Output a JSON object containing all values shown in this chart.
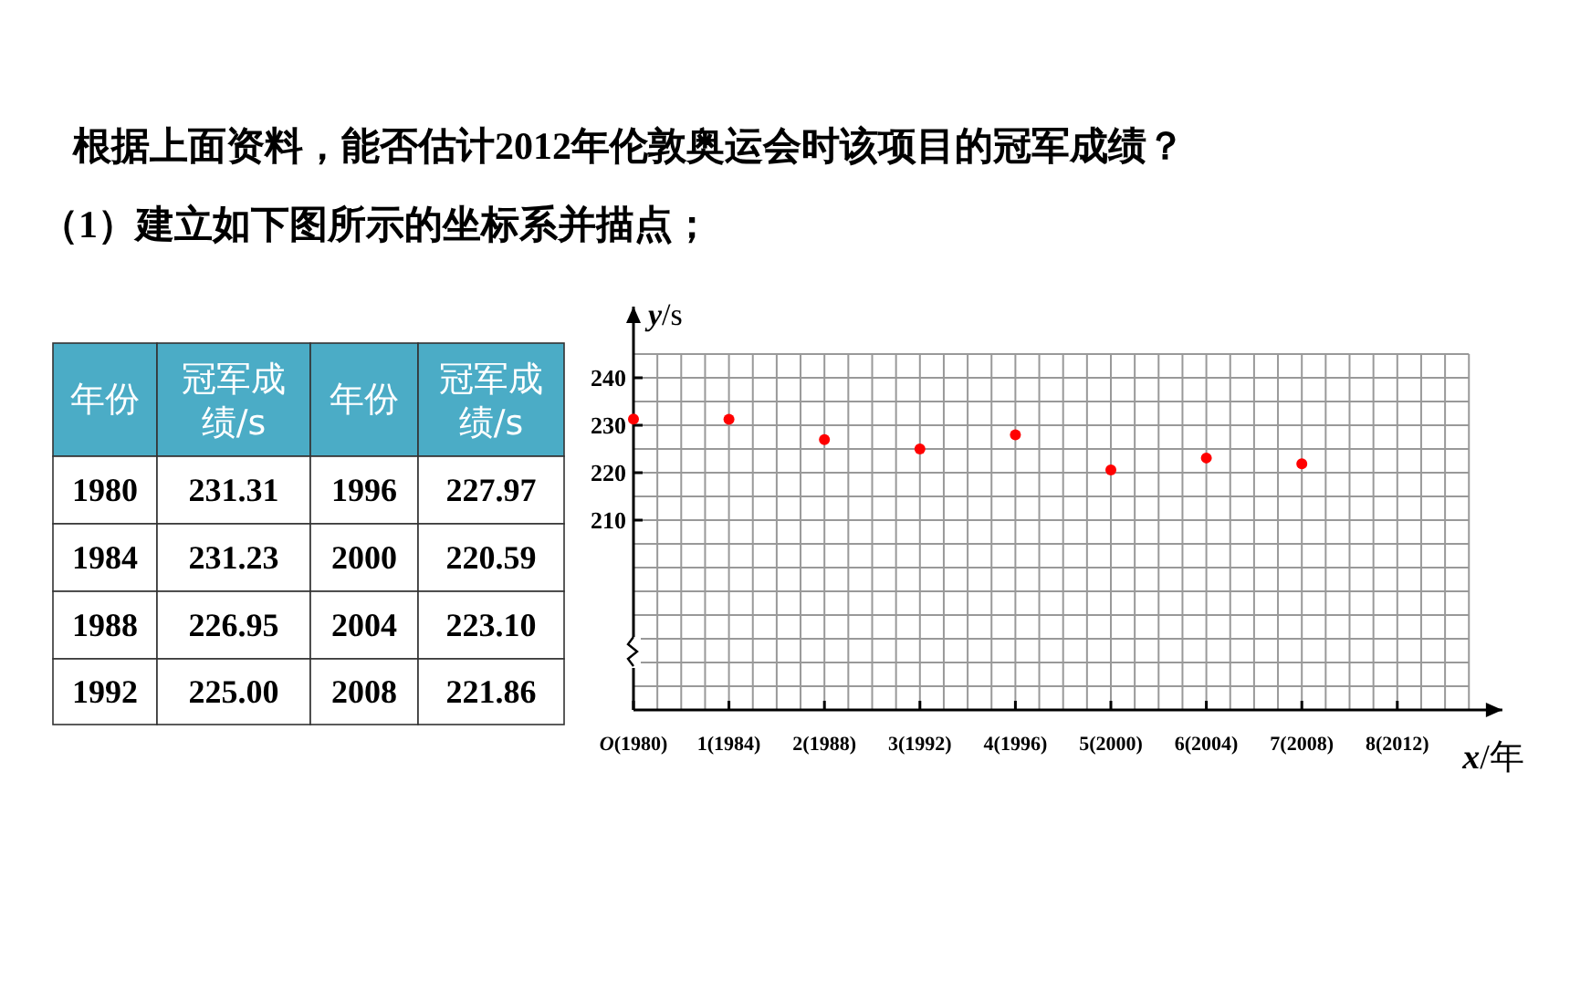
{
  "chart_data": {
    "type": "scatter",
    "title": "根据上面资料，能否估计2012年伦敦奥运会时该项目的冠军成绩？",
    "subtitle": "（1）建立如下图所示的坐标系并描点；",
    "xlabel": "x/年",
    "ylabel": "y/s",
    "categories": [
      "O(1980)",
      "1(1984)",
      "2(1988)",
      "3(1992)",
      "4(1996)",
      "5(2000)",
      "6(2004)",
      "7(2008)",
      "8(2012)"
    ],
    "series": [
      {
        "color": "#ff0000",
        "values": [
          231.31,
          231.23,
          226.95,
          225.0,
          227.97,
          220.59,
          223.1,
          221.86,
          null
        ]
      }
    ],
    "annotations": [
      "年份",
      "冠军成绩/s",
      "1980",
      "231.31",
      "1996",
      "227.97",
      "1984",
      "231.23",
      "2000",
      "220.59",
      "1988",
      "226.95",
      "2004",
      "223.10",
      "1992",
      "225.00",
      "2008",
      "221.86"
    ],
    "ylim": [
      170,
      255
    ],
    "yticks": [
      210,
      220,
      230,
      240
    ],
    "grid": true,
    "marker": "circle"
  }
}
